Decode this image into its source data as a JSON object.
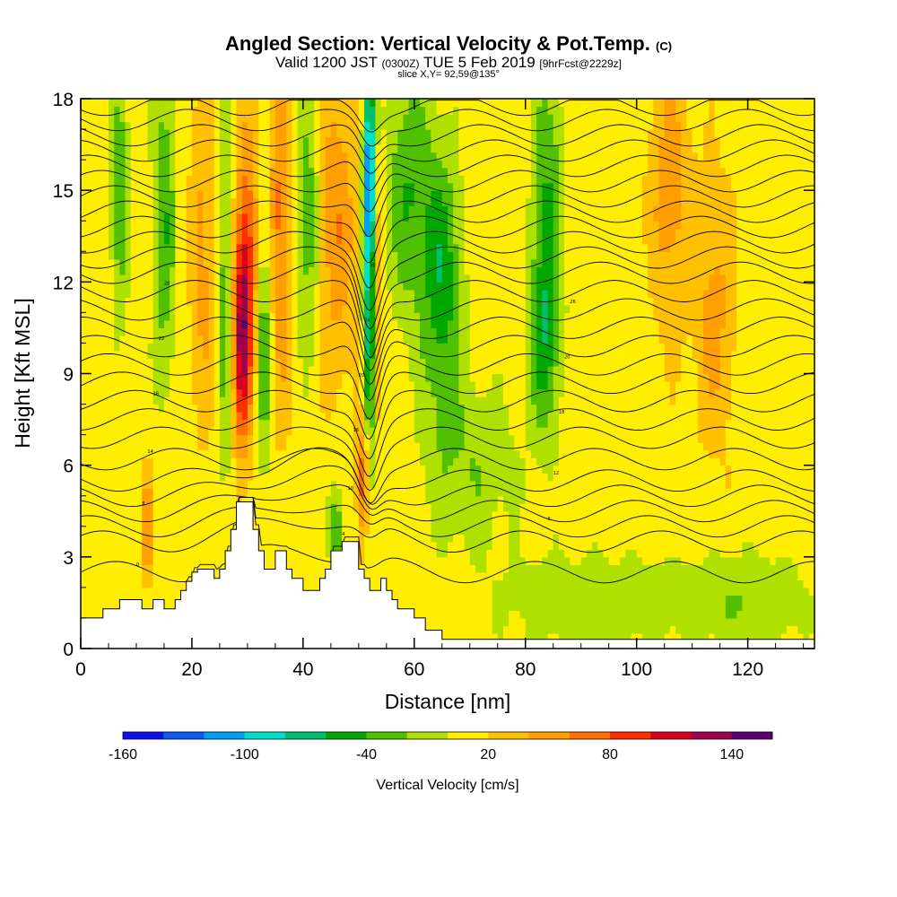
{
  "chart_data": {
    "type": "heatmap",
    "title": "Angled Section: Vertical Velocity & Pot.Temp.",
    "title_tag": "(C)",
    "subtitle_main": "Valid 1200 JST",
    "subtitle_utc": "(0300Z)",
    "subtitle_date": "TUE 5 Feb 2019",
    "subtitle_fcst": "[9hrFcst@2229z]",
    "slice_info": "slice X,Y= 92,59@135°",
    "xlabel": "Distance [nm]",
    "ylabel": "Height [Kft MSL]",
    "xlim": [
      0,
      132
    ],
    "ylim": [
      0,
      18
    ],
    "x_ticks": [
      "0",
      "20",
      "40",
      "60",
      "80",
      "100",
      "120"
    ],
    "y_ticks": [
      "0",
      "3",
      "6",
      "9",
      "12",
      "15",
      "18"
    ],
    "colorbar": {
      "title": "Vertical Velocity [cm/s]",
      "tick_labels": [
        "-160",
        "-100",
        "-40",
        "20",
        "80",
        "140"
      ],
      "min": -160,
      "max": 160,
      "step": 20,
      "colors": [
        "#1010ee",
        "#0a5af0",
        "#00a0f0",
        "#00e0c8",
        "#00c070",
        "#00a800",
        "#50c000",
        "#b0e000",
        "#ffee00",
        "#ffc000",
        "#ffa000",
        "#ff7000",
        "#ff3000",
        "#d80020",
        "#a00050",
        "#5a0070"
      ]
    },
    "terrain_kft": [
      [
        0,
        1
      ],
      [
        4,
        1
      ],
      [
        4,
        1.3
      ],
      [
        7,
        1.3
      ],
      [
        7,
        1.6
      ],
      [
        11,
        1.6
      ],
      [
        11,
        1.3
      ],
      [
        13,
        1.3
      ],
      [
        13,
        1.6
      ],
      [
        15,
        1.6
      ],
      [
        15,
        1.3
      ],
      [
        17,
        1.3
      ],
      [
        17,
        1.6
      ],
      [
        18,
        1.6
      ],
      [
        18,
        1.9
      ],
      [
        19,
        1.9
      ],
      [
        19,
        2.2
      ],
      [
        20,
        2.2
      ],
      [
        20,
        2.5
      ],
      [
        21,
        2.5
      ],
      [
        21,
        2.6
      ],
      [
        24,
        2.6
      ],
      [
        24,
        2.3
      ],
      [
        25,
        2.3
      ],
      [
        25,
        2.6
      ],
      [
        26,
        2.6
      ],
      [
        26,
        3.2
      ],
      [
        27,
        3.2
      ],
      [
        27,
        3.9
      ],
      [
        28,
        3.9
      ],
      [
        28,
        4.8
      ],
      [
        31,
        4.8
      ],
      [
        31,
        3.9
      ],
      [
        32,
        3.9
      ],
      [
        32,
        3.2
      ],
      [
        33,
        3.2
      ],
      [
        33,
        2.6
      ],
      [
        35,
        2.6
      ],
      [
        35,
        3.2
      ],
      [
        37,
        3.2
      ],
      [
        37,
        2.6
      ],
      [
        38,
        2.6
      ],
      [
        38,
        2.3
      ],
      [
        40,
        2.3
      ],
      [
        40,
        1.9
      ],
      [
        43,
        1.9
      ],
      [
        43,
        2.3
      ],
      [
        44,
        2.3
      ],
      [
        44,
        2.6
      ],
      [
        45,
        2.6
      ],
      [
        45,
        3.2
      ],
      [
        47,
        3.2
      ],
      [
        47,
        3.5
      ],
      [
        50,
        3.5
      ],
      [
        50,
        2.6
      ],
      [
        51,
        2.6
      ],
      [
        51,
        2.3
      ],
      [
        52,
        2.3
      ],
      [
        52,
        1.9
      ],
      [
        54,
        1.9
      ],
      [
        54,
        2.3
      ],
      [
        55,
        2.3
      ],
      [
        55,
        1.9
      ],
      [
        56,
        1.9
      ],
      [
        56,
        1.6
      ],
      [
        57,
        1.6
      ],
      [
        57,
        1.3
      ],
      [
        60,
        1.3
      ],
      [
        60,
        1.0
      ],
      [
        62,
        1.0
      ],
      [
        62,
        0.6
      ],
      [
        65,
        0.6
      ],
      [
        65,
        0.3
      ],
      [
        132,
        0.3
      ],
      [
        132,
        0
      ]
    ],
    "updrafts": [
      {
        "x": 29,
        "y": 10,
        "amp": 95,
        "sx": 1.2,
        "sy": 2.5
      },
      {
        "x": 30,
        "y": 13,
        "amp": 60,
        "sx": 1.5,
        "sy": 3
      },
      {
        "x": 36,
        "y": 14,
        "amp": 55,
        "sx": 1.5,
        "sy": 4
      },
      {
        "x": 51,
        "y": 5.5,
        "amp": 80,
        "sx": 0.8,
        "sy": 1.5
      },
      {
        "x": 53,
        "y": 12,
        "amp": 55,
        "sx": 0.9,
        "sy": 4
      },
      {
        "x": 46,
        "y": 14,
        "amp": 45,
        "sx": 2.5,
        "sy": 3.5
      },
      {
        "x": 12,
        "y": 4,
        "amp": 60,
        "sx": 0.6,
        "sy": 1.2
      },
      {
        "x": 22,
        "y": 13,
        "amp": 35,
        "sx": 1.5,
        "sy": 4
      },
      {
        "x": 106,
        "y": 15,
        "amp": 40,
        "sx": 2.5,
        "sy": 3
      },
      {
        "x": 114,
        "y": 11,
        "amp": 35,
        "sx": 2.5,
        "sy": 3
      }
    ],
    "downdrafts": [
      {
        "x": 52,
        "y": 11.5,
        "amp": -120,
        "sx": 0.8,
        "sy": 4.5
      },
      {
        "x": 52,
        "y": 16,
        "amp": -90,
        "sx": 0.8,
        "sy": 2
      },
      {
        "x": 65,
        "y": 12,
        "amp": -65,
        "sx": 2.5,
        "sy": 3
      },
      {
        "x": 59,
        "y": 15,
        "amp": -50,
        "sx": 3,
        "sy": 3
      },
      {
        "x": 84,
        "y": 14,
        "amp": -55,
        "sx": 2,
        "sy": 4
      },
      {
        "x": 83,
        "y": 10,
        "amp": -40,
        "sx": 2,
        "sy": 2
      },
      {
        "x": 7,
        "y": 15,
        "amp": -50,
        "sx": 1.2,
        "sy": 3
      },
      {
        "x": 15,
        "y": 14,
        "amp": -50,
        "sx": 1.5,
        "sy": 4
      },
      {
        "x": 26,
        "y": 12,
        "amp": -45,
        "sx": 1,
        "sy": 5
      },
      {
        "x": 33,
        "y": 10,
        "amp": -55,
        "sx": 1,
        "sy": 3
      },
      {
        "x": 41,
        "y": 14,
        "amp": -50,
        "sx": 1.5,
        "sy": 3
      },
      {
        "x": 46,
        "y": 4,
        "amp": -50,
        "sx": 1,
        "sy": 1
      },
      {
        "x": 92,
        "y": 1.5,
        "amp": -28,
        "sx": 12,
        "sy": 1.2
      },
      {
        "x": 120,
        "y": 1.5,
        "amp": -30,
        "sx": 8,
        "sy": 1.2
      },
      {
        "x": 70,
        "y": 6,
        "amp": -30,
        "sx": 6,
        "sy": 2
      }
    ],
    "theta_isolines": {
      "levels_count": 28,
      "base_heights_kft": [
        2.5,
        3.5,
        4.0,
        4.5,
        5.0,
        5.5,
        6.2,
        6.9,
        7.5,
        8.1,
        8.7,
        9.3,
        9.9,
        10.5,
        11.1,
        11.7,
        12.3,
        12.8,
        13.3,
        13.8,
        14.3,
        14.8,
        15.3,
        15.8,
        16.3,
        16.8,
        17.3,
        17.8
      ],
      "labels": [
        "0",
        "4",
        "6",
        "8",
        "10",
        "12",
        "14",
        "16",
        "18",
        "18",
        "20",
        "20",
        "22",
        "24",
        "26",
        "28",
        "30"
      ]
    }
  }
}
